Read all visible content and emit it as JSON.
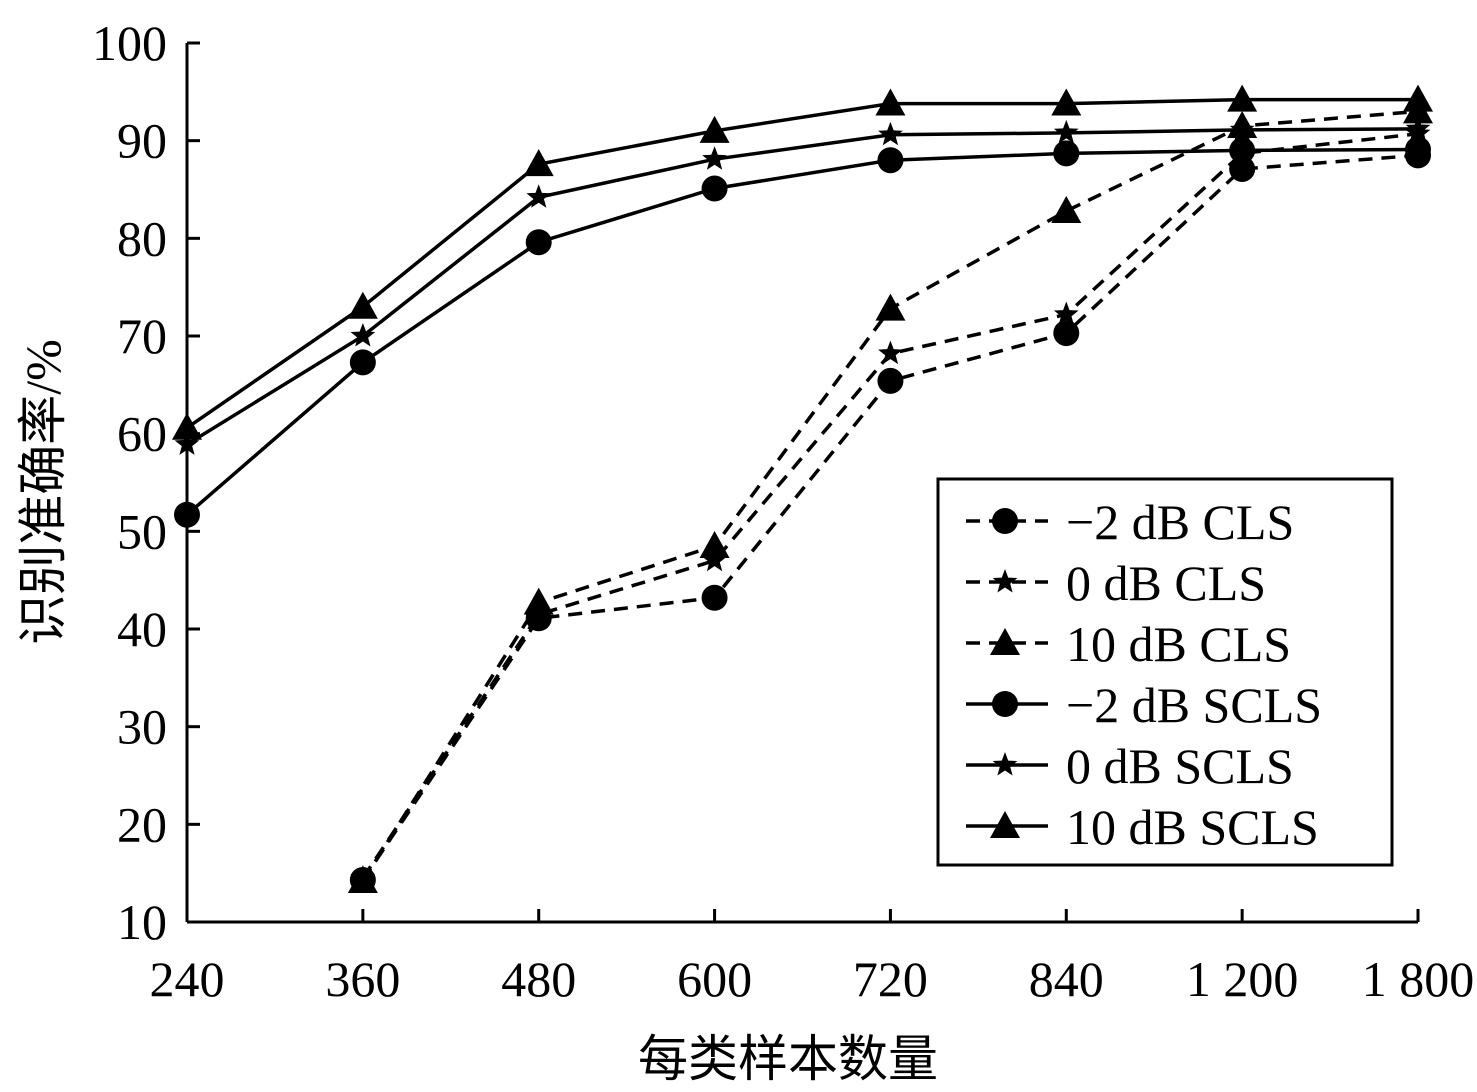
{
  "chart_data": {
    "type": "line",
    "xlabel": "每类样本数量",
    "ylabel": "识别准确率/%",
    "categories": [
      "240",
      "360",
      "480",
      "600",
      "720",
      "840",
      "1 200",
      "1 800"
    ],
    "yticks": [
      "10",
      "20",
      "30",
      "40",
      "50",
      "60",
      "70",
      "80",
      "90",
      "100"
    ],
    "ylim": [
      10,
      100
    ],
    "grid": false,
    "legend_position": "bottom-right",
    "series": [
      {
        "name": "−2 dB CLS",
        "marker": "circle",
        "dash": true,
        "values": [
          null,
          14.3,
          41.1,
          43.2,
          65.4,
          70.3,
          87.1,
          88.5
        ]
      },
      {
        "name": "0 dB CLS",
        "marker": "star",
        "dash": true,
        "values": [
          null,
          14.5,
          41.5,
          47.0,
          68.2,
          72.2,
          88.7,
          90.7
        ]
      },
      {
        "name": "10 dB CLS",
        "marker": "triangle",
        "dash": true,
        "values": [
          null,
          14.2,
          42.7,
          48.5,
          72.8,
          82.8,
          91.5,
          93.0
        ]
      },
      {
        "name": "−2 dB SCLS",
        "marker": "circle",
        "dash": false,
        "values": [
          51.7,
          67.3,
          79.6,
          85.1,
          88.0,
          88.7,
          89.0,
          89.1
        ]
      },
      {
        "name": "0 dB SCLS",
        "marker": "star",
        "dash": false,
        "values": [
          58.9,
          70.0,
          84.2,
          88.1,
          90.6,
          90.8,
          91.1,
          91.2
        ]
      },
      {
        "name": "10 dB SCLS",
        "marker": "triangle",
        "dash": false,
        "values": [
          60.6,
          73.0,
          87.6,
          91.0,
          93.8,
          93.8,
          94.2,
          94.2
        ]
      }
    ]
  }
}
